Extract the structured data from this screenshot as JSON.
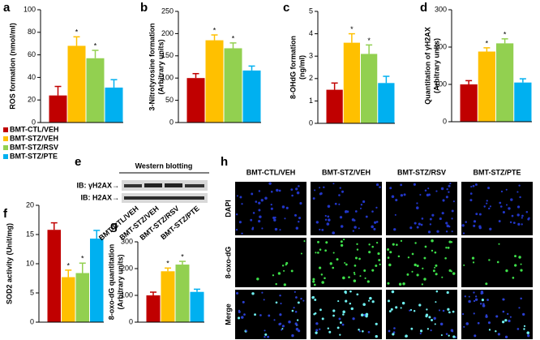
{
  "chart_data": [
    {
      "type": "bar",
      "panel_label": "a",
      "ylabel": [
        "ROS formation (nmol/ml)"
      ],
      "values": [
        24,
        68,
        57,
        31
      ],
      "errors": [
        8,
        8,
        7,
        7
      ],
      "significance": [
        null,
        "*",
        "*",
        null
      ],
      "ylim": [
        0,
        100
      ],
      "yticks": [
        0,
        20,
        40,
        60,
        80,
        100
      ]
    },
    {
      "type": "bar",
      "panel_label": "b",
      "ylabel": [
        "3-Nitrotyrosine formation",
        "(Arbitrary units)"
      ],
      "values": [
        100,
        185,
        167,
        117
      ],
      "errors": [
        10,
        12,
        12,
        10
      ],
      "significance": [
        null,
        "*",
        "*",
        null
      ],
      "ylim": [
        0,
        250
      ],
      "yticks": [
        0,
        50,
        100,
        150,
        200,
        250
      ]
    },
    {
      "type": "bar",
      "panel_label": "c",
      "ylabel": [
        "8-OHdG formation",
        "(ng/ml)"
      ],
      "values": [
        1.5,
        3.6,
        3.1,
        1.8
      ],
      "errors": [
        0.3,
        0.4,
        0.4,
        0.3
      ],
      "significance": [
        null,
        "*",
        "*",
        null
      ],
      "ylim": [
        0,
        5
      ],
      "yticks": [
        0,
        1,
        2,
        3,
        4,
        5
      ]
    },
    {
      "type": "bar",
      "panel_label": "d",
      "ylabel": [
        "Quantitation of γH2AX",
        "(Arbitrary units)"
      ],
      "values": [
        100,
        188,
        210,
        105
      ],
      "errors": [
        10,
        10,
        12,
        10
      ],
      "significance": [
        null,
        "*",
        "*",
        null
      ],
      "ylim": [
        0,
        300
      ],
      "yticks": [
        0,
        100,
        200,
        300
      ]
    },
    {
      "type": "bar",
      "panel_label": "f",
      "ylabel": [
        "SOD2 activity (Unit/mg)"
      ],
      "values": [
        15.8,
        7.7,
        8.4,
        14.3
      ],
      "errors": [
        1.2,
        1.2,
        1.7,
        1.4
      ],
      "significance": [
        null,
        "*",
        "*",
        null
      ],
      "ylim": [
        0,
        20
      ],
      "yticks": [
        0,
        5,
        10,
        15,
        20
      ]
    },
    {
      "type": "bar",
      "panel_label": "g",
      "ylabel": [
        "8-oxo-dG quantitation",
        "(Arbitrary units)"
      ],
      "values": [
        100,
        190,
        215,
        113
      ],
      "errors": [
        12,
        12,
        12,
        10
      ],
      "significance": [
        null,
        "*",
        "*",
        null
      ],
      "ylim": [
        0,
        300
      ],
      "yticks": [
        0,
        100,
        200,
        300
      ]
    }
  ],
  "legend": {
    "items": [
      {
        "name": "BMT-CTL/VEH",
        "color": "#c00000"
      },
      {
        "name": "BMT-STZ/VEH",
        "color": "#ffc000"
      },
      {
        "name": "BMT-STZ/RSV",
        "color": "#92d050"
      },
      {
        "name": "BMT-STZ/PTE",
        "color": "#00b0f0"
      }
    ]
  },
  "panel_e": {
    "label": "e",
    "title": "Western blotting",
    "rows": [
      "IB: γH2AX→",
      "IB: H2AX→"
    ],
    "lanes": [
      "BMT-CTL/VEH",
      "BMT-STZ/VEH",
      "BMT-STZ/RSV",
      "BMT-STZ/PTE"
    ]
  },
  "panel_h": {
    "label": "h",
    "columns": [
      "BMT-CTL/VEH",
      "BMT-STZ/VEH",
      "BMT-STZ/RSV",
      "BMT-STZ/PTE"
    ],
    "rows": [
      "DAPI",
      "8-oxo-dG",
      "Merge"
    ]
  }
}
